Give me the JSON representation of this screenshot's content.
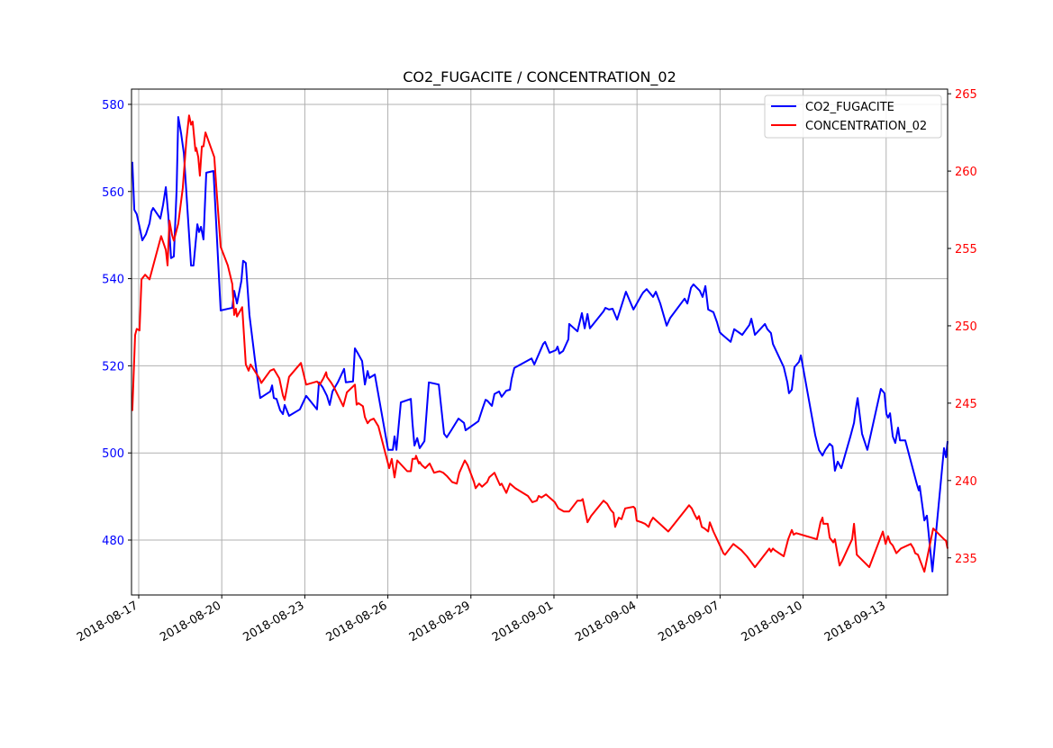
{
  "chart_data": {
    "type": "line",
    "title": "CO2_FUGACITE / CONCENTRATION_02",
    "x_unit": "days since 2018-08-17",
    "xlim": [
      -0.26,
      29.22
    ],
    "x_ticks": [
      {
        "value": 0,
        "label": "2018-08-17"
      },
      {
        "value": 3,
        "label": "2018-08-20"
      },
      {
        "value": 6,
        "label": "2018-08-23"
      },
      {
        "value": 9,
        "label": "2018-08-26"
      },
      {
        "value": 12,
        "label": "2018-08-29"
      },
      {
        "value": 15,
        "label": "2018-09-01"
      },
      {
        "value": 18,
        "label": "2018-09-04"
      },
      {
        "value": 21,
        "label": "2018-09-07"
      },
      {
        "value": 24,
        "label": "2018-09-10"
      },
      {
        "value": 27,
        "label": "2018-09-13"
      }
    ],
    "y_left": {
      "lim": [
        467.4,
        583.5
      ],
      "ticks": [
        480,
        500,
        520,
        540,
        560,
        580
      ],
      "color": "#0000ff"
    },
    "y_right": {
      "lim": [
        232.6,
        265.3
      ],
      "ticks": [
        235,
        240,
        245,
        250,
        255,
        260,
        265
      ],
      "color": "#ff0000"
    },
    "grid": true,
    "legend_position": "top-right",
    "series": [
      {
        "name": "CO2_FUGACITE",
        "axis": "left",
        "color": "#0000ff",
        "x": [
          -0.23,
          -0.16,
          -0.07,
          0.03,
          0.13,
          0.26,
          0.39,
          0.46,
          0.52,
          0.78,
          0.88,
          0.98,
          1.07,
          1.17,
          1.27,
          1.37,
          1.43,
          1.53,
          1.63,
          1.89,
          1.98,
          2.12,
          2.18,
          2.25,
          2.34,
          2.44,
          2.7,
          2.96,
          3.38,
          3.45,
          3.55,
          3.71,
          3.77,
          3.87,
          4.0,
          4.2,
          4.39,
          4.75,
          4.82,
          4.88,
          4.98,
          5.11,
          5.21,
          5.27,
          5.43,
          5.82,
          6.05,
          6.44,
          6.51,
          6.64,
          6.8,
          6.9,
          7.0,
          7.19,
          7.42,
          7.48,
          7.74,
          7.81,
          7.94,
          8.07,
          8.17,
          8.27,
          8.33,
          8.53,
          9.01,
          9.18,
          9.24,
          9.31,
          9.47,
          9.83,
          9.89,
          9.96,
          10.06,
          10.15,
          10.32,
          10.48,
          10.84,
          11.03,
          11.13,
          11.29,
          11.55,
          11.75,
          11.81,
          12.14,
          12.27,
          12.43,
          12.53,
          12.59,
          12.76,
          12.85,
          13.02,
          13.11,
          13.28,
          13.41,
          13.47,
          13.57,
          14.19,
          14.29,
          14.61,
          14.68,
          14.84,
          15.07,
          15.13,
          15.2,
          15.33,
          15.52,
          15.55,
          15.85,
          16.01,
          16.11,
          16.21,
          16.3,
          16.79,
          16.86,
          16.99,
          17.12,
          17.28,
          17.6,
          17.87,
          17.96,
          18.16,
          18.22,
          18.35,
          18.58,
          18.68,
          18.84,
          19.07,
          19.2,
          19.72,
          19.82,
          19.95,
          20.04,
          20.27,
          20.37,
          20.47,
          20.57,
          20.76,
          20.89,
          20.99,
          21.05,
          21.38,
          21.51,
          21.8,
          22.06,
          22.13,
          22.26,
          22.62,
          22.71,
          22.84,
          22.91,
          23.3,
          23.43,
          23.49,
          23.59,
          23.69,
          23.85,
          23.92,
          24.44,
          24.57,
          24.7,
          24.8,
          24.96,
          25.06,
          25.15,
          25.25,
          25.38,
          25.71,
          25.84,
          25.9,
          25.97,
          26.13,
          26.32,
          26.81,
          26.94,
          27.01,
          27.07,
          27.14,
          27.24,
          27.33,
          27.43,
          27.5,
          27.69,
          28.11,
          28.18,
          28.21,
          28.38,
          28.47,
          28.67,
          29.09,
          29.16,
          29.22
        ],
        "y": [
          566.8,
          555.8,
          554.8,
          551.9,
          548.8,
          550.2,
          552.7,
          555.4,
          556.2,
          553.8,
          556.9,
          561.0,
          554.4,
          544.7,
          545.1,
          560.6,
          577.1,
          573.4,
          568.8,
          543.0,
          543.0,
          552.5,
          550.7,
          551.9,
          549.0,
          564.3,
          564.7,
          532.7,
          533.3,
          537.2,
          534.3,
          539.5,
          544.1,
          543.6,
          531.7,
          521.3,
          512.6,
          514.1,
          515.5,
          512.6,
          512.4,
          509.8,
          508.9,
          511.0,
          508.5,
          510.0,
          513.1,
          510.0,
          516.2,
          515.1,
          513.1,
          511.0,
          514.1,
          516.2,
          519.3,
          516.2,
          516.4,
          524.0,
          522.6,
          521.1,
          515.7,
          518.8,
          517.2,
          518.0,
          500.7,
          500.7,
          503.8,
          500.7,
          511.6,
          512.4,
          506.9,
          501.7,
          503.4,
          501.1,
          502.7,
          516.2,
          515.7,
          504.4,
          503.6,
          505.2,
          507.9,
          506.9,
          505.2,
          506.7,
          507.3,
          510.4,
          512.2,
          512.0,
          510.8,
          513.5,
          514.1,
          512.9,
          514.3,
          514.5,
          517.0,
          519.5,
          521.7,
          520.3,
          525.0,
          525.5,
          523.0,
          523.6,
          524.4,
          522.8,
          523.4,
          526.1,
          529.6,
          527.9,
          532.1,
          528.6,
          531.9,
          528.6,
          532.5,
          533.3,
          532.9,
          533.1,
          530.6,
          537.0,
          532.9,
          533.9,
          536.2,
          536.8,
          537.6,
          535.8,
          537.0,
          534.3,
          529.2,
          531.0,
          535.4,
          534.3,
          537.9,
          538.7,
          537.2,
          535.8,
          538.3,
          532.9,
          532.3,
          530.0,
          527.7,
          527.3,
          525.5,
          528.4,
          527.1,
          529.4,
          530.8,
          527.1,
          529.6,
          528.4,
          527.5,
          525.0,
          519.7,
          516.2,
          513.7,
          514.5,
          519.7,
          520.9,
          522.4,
          504.0,
          500.7,
          499.4,
          500.7,
          502.1,
          501.5,
          495.9,
          498.0,
          496.5,
          503.8,
          506.9,
          510.0,
          512.6,
          504.4,
          500.7,
          514.7,
          513.7,
          508.9,
          508.1,
          509.1,
          503.8,
          502.3,
          505.8,
          502.9,
          502.9,
          492.8,
          491.4,
          492.4,
          484.5,
          485.6,
          472.8,
          501.1,
          499.0,
          502.7
        ]
      },
      {
        "name": "CONCENTRATION_02",
        "axis": "right",
        "color": "#ff0000",
        "x": [
          -0.23,
          -0.13,
          -0.07,
          0.03,
          0.1,
          0.23,
          0.39,
          0.81,
          0.98,
          1.04,
          1.11,
          1.2,
          1.27,
          1.43,
          1.59,
          1.72,
          1.82,
          1.89,
          1.95,
          2.05,
          2.08,
          2.15,
          2.21,
          2.28,
          2.34,
          2.41,
          2.73,
          2.8,
          2.96,
          3.22,
          3.38,
          3.45,
          3.51,
          3.55,
          3.74,
          3.87,
          3.97,
          4.04,
          4.36,
          4.43,
          4.75,
          4.88,
          5.08,
          5.21,
          5.27,
          5.43,
          5.86,
          6.05,
          6.44,
          6.54,
          6.67,
          6.77,
          6.8,
          6.96,
          7.06,
          7.39,
          7.52,
          7.81,
          7.87,
          7.94,
          8.1,
          8.17,
          8.27,
          8.36,
          8.49,
          8.66,
          9.05,
          9.14,
          9.24,
          9.34,
          9.7,
          9.83,
          9.89,
          9.99,
          10.02,
          10.12,
          10.15,
          10.22,
          10.35,
          10.51,
          10.67,
          10.87,
          11.0,
          11.13,
          11.32,
          11.49,
          11.58,
          11.78,
          11.88,
          12.11,
          12.17,
          12.3,
          12.4,
          12.59,
          12.66,
          12.72,
          12.85,
          12.95,
          13.05,
          13.11,
          13.28,
          13.41,
          13.6,
          14.06,
          14.22,
          14.38,
          14.45,
          14.55,
          14.71,
          15.03,
          15.16,
          15.36,
          15.55,
          15.85,
          15.98,
          16.04,
          16.11,
          16.21,
          16.34,
          16.79,
          16.92,
          17.05,
          17.15,
          17.21,
          17.34,
          17.44,
          17.57,
          17.87,
          17.93,
          17.99,
          18.16,
          18.29,
          18.42,
          18.48,
          18.58,
          19.13,
          19.88,
          19.98,
          20.08,
          20.17,
          20.24,
          20.34,
          20.44,
          20.57,
          20.63,
          20.76,
          20.89,
          21.02,
          21.12,
          21.18,
          21.48,
          21.77,
          21.97,
          22.26,
          22.78,
          22.84,
          22.91,
          22.97,
          23.3,
          23.46,
          23.59,
          23.66,
          23.75,
          24.5,
          24.63,
          24.7,
          24.73,
          24.89,
          24.96,
          25.09,
          25.15,
          25.32,
          25.41,
          25.77,
          25.84,
          25.94,
          26.39,
          26.88,
          26.98,
          27.07,
          27.14,
          27.24,
          27.37,
          27.53,
          27.89,
          27.99,
          28.05,
          28.15,
          28.38,
          28.7,
          29.09,
          29.16,
          29.22
        ],
        "y": [
          244.5,
          249.4,
          249.8,
          249.7,
          253.0,
          253.3,
          253.0,
          255.8,
          254.9,
          253.9,
          256.8,
          255.9,
          255.5,
          256.6,
          258.9,
          262.0,
          263.6,
          263.0,
          263.2,
          261.3,
          261.5,
          260.9,
          259.7,
          261.6,
          261.6,
          262.5,
          260.9,
          259.1,
          255.1,
          253.9,
          252.7,
          250.7,
          251.1,
          250.6,
          251.2,
          247.5,
          247.1,
          247.5,
          246.6,
          246.3,
          247.1,
          247.2,
          246.6,
          245.5,
          245.2,
          246.7,
          247.6,
          246.2,
          246.4,
          246.2,
          246.6,
          247.0,
          246.7,
          246.3,
          246.0,
          244.8,
          245.7,
          246.2,
          244.9,
          245.0,
          244.8,
          244.1,
          243.7,
          243.9,
          244.0,
          243.5,
          240.8,
          241.4,
          240.2,
          241.3,
          240.6,
          240.6,
          241.4,
          241.4,
          241.6,
          241.1,
          241.2,
          241.0,
          240.8,
          241.1,
          240.5,
          240.6,
          240.5,
          240.3,
          239.9,
          239.8,
          240.5,
          241.3,
          241.0,
          239.9,
          239.5,
          239.8,
          239.6,
          239.9,
          240.2,
          240.3,
          240.5,
          240.1,
          239.7,
          239.8,
          239.2,
          239.8,
          239.5,
          239.0,
          238.6,
          238.7,
          239.0,
          238.9,
          239.1,
          238.6,
          238.2,
          238.0,
          238.0,
          238.7,
          238.7,
          238.8,
          238.2,
          237.3,
          237.7,
          238.7,
          238.5,
          238.1,
          237.9,
          237.0,
          237.6,
          237.5,
          238.2,
          238.3,
          238.2,
          237.4,
          237.3,
          237.2,
          237.0,
          237.3,
          237.6,
          236.7,
          238.4,
          238.2,
          237.8,
          237.5,
          237.7,
          237.0,
          236.9,
          236.7,
          237.3,
          236.7,
          236.2,
          235.7,
          235.3,
          235.2,
          235.9,
          235.5,
          235.1,
          234.4,
          235.6,
          235.4,
          235.6,
          235.5,
          235.1,
          236.2,
          236.8,
          236.5,
          236.6,
          236.2,
          237.3,
          237.6,
          237.2,
          237.2,
          236.3,
          236.0,
          236.2,
          234.5,
          234.8,
          236.2,
          237.2,
          235.2,
          234.4,
          236.7,
          235.9,
          236.4,
          236.0,
          235.8,
          235.3,
          235.6,
          235.9,
          235.6,
          235.3,
          235.2,
          234.1,
          236.9,
          236.2,
          236.1,
          235.6
        ]
      }
    ]
  }
}
